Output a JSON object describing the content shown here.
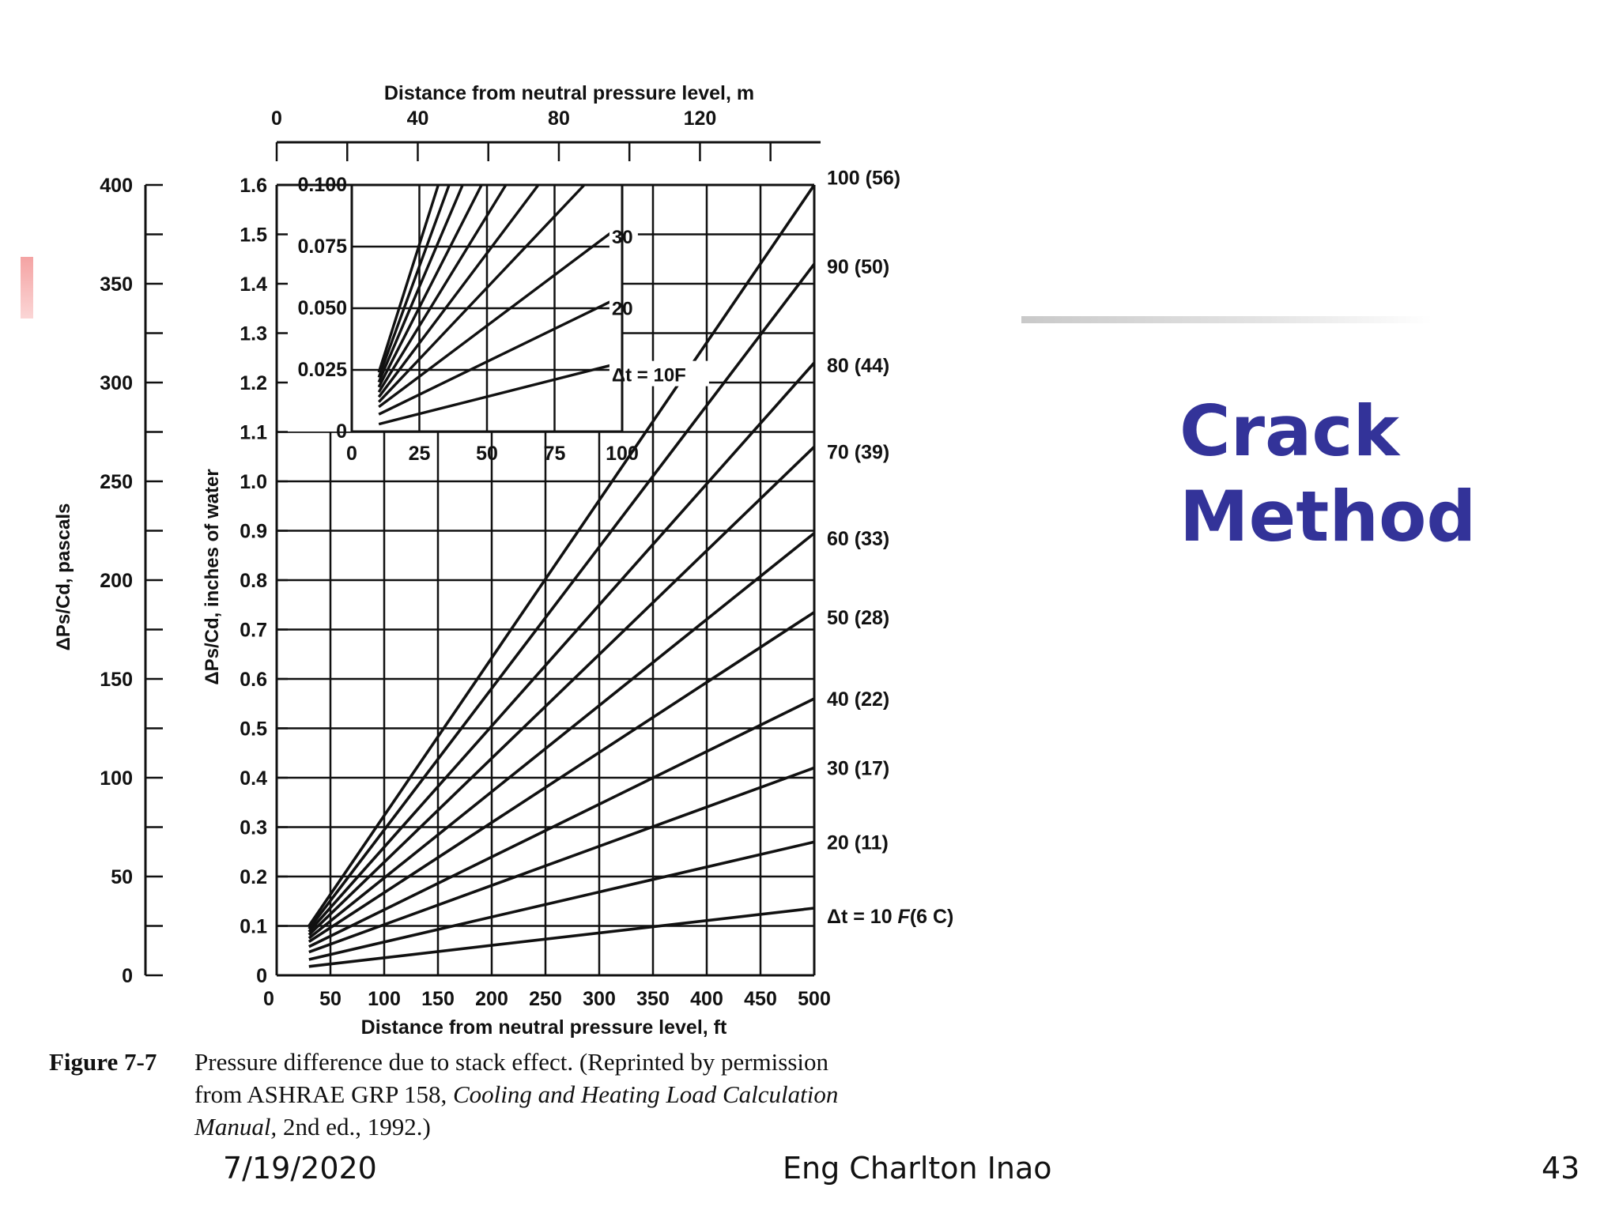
{
  "slide": {
    "title_line1": "Crack",
    "title_line2": "Method",
    "footer_date": "7/19/2020",
    "footer_author": "Eng Charlton Inao",
    "page_number": "43",
    "title_color": "#333399"
  },
  "caption": {
    "figure_number": "Figure 7-7",
    "line1": "Pressure difference due to stack effect. (Reprinted by permission",
    "line2_plain": "from ASHRAE GRP 158, ",
    "line2_italic": "Cooling and Heating Load Calculation",
    "line3_italic": "Manual,",
    "line3_plain": " 2nd ed., 1992.)"
  },
  "chart_data": [
    {
      "type": "line",
      "title": "",
      "xlabel": "Distance from neutral pressure level, ft",
      "x2label": "Distance from neutral pressure level, m",
      "ylabel": "ΔPs/Cd, inches of water",
      "y2label": "ΔPs/Cd, pascals",
      "xlim": [
        0,
        500
      ],
      "ylim": [
        0,
        1.6
      ],
      "x_ticks": [
        "0",
        "50",
        "100",
        "150",
        "200",
        "250",
        "300",
        "350",
        "400",
        "450",
        "500"
      ],
      "x2_ticks": [
        "0",
        "40",
        "80",
        "120"
      ],
      "y_ticks": [
        "0",
        "0.1",
        "0.2",
        "0.3",
        "0.4",
        "0.5",
        "0.6",
        "0.7",
        "0.8",
        "0.9",
        "1.0",
        "1.1",
        "1.2",
        "1.3",
        "1.4",
        "1.5",
        "1.6"
      ],
      "y2_ticks": [
        "0",
        "50",
        "100",
        "150",
        "200",
        "250",
        "300",
        "350",
        "400"
      ],
      "grid": true,
      "series": [
        {
          "name": "Δt = 10 F(6 C)",
          "x": [
            30,
            500
          ],
          "y": [
            0.018,
            0.136
          ]
        },
        {
          "name": "20 (11)",
          "x": [
            30,
            500
          ],
          "y": [
            0.032,
            0.27
          ]
        },
        {
          "name": "30 (17)",
          "x": [
            30,
            500
          ],
          "y": [
            0.047,
            0.42
          ]
        },
        {
          "name": "40 (22)",
          "x": [
            30,
            500
          ],
          "y": [
            0.058,
            0.56
          ]
        },
        {
          "name": "50 (28)",
          "x": [
            30,
            500
          ],
          "y": [
            0.068,
            0.735
          ]
        },
        {
          "name": "60 (33)",
          "x": [
            30,
            500
          ],
          "y": [
            0.075,
            0.895
          ]
        },
        {
          "name": "70 (39)",
          "x": [
            30,
            500
          ],
          "y": [
            0.082,
            1.07
          ]
        },
        {
          "name": "80 (44)",
          "x": [
            30,
            500
          ],
          "y": [
            0.088,
            1.24
          ]
        },
        {
          "name": "90 (50)",
          "x": [
            30,
            500
          ],
          "y": [
            0.094,
            1.44
          ]
        },
        {
          "name": "100 (56)",
          "x": [
            30,
            500
          ],
          "y": [
            0.1,
            1.6
          ]
        }
      ],
      "right_labels": [
        {
          "text": "Δt = 10 ",
          "italic": "F",
          "suffix": "(6 C)",
          "y": 0.12
        },
        {
          "text": "20  (11)",
          "y": 0.27
        },
        {
          "text": "30  (17)",
          "y": 0.42
        },
        {
          "text": "40   (22)",
          "y": 0.56
        },
        {
          "text": "50   (28)",
          "y": 0.725
        },
        {
          "text": "60   (33)",
          "y": 0.885
        },
        {
          "text": "70  (39)",
          "y": 1.06
        },
        {
          "text": "80   (44)",
          "y": 1.235
        },
        {
          "text": "90   (50)",
          "y": 1.435
        },
        {
          "text": "100 (56)",
          "y": 1.615
        }
      ]
    },
    {
      "type": "line",
      "title": "",
      "inset": true,
      "xlim": [
        0,
        100
      ],
      "ylim": [
        0,
        0.1
      ],
      "x_ticks": [
        "0",
        "25",
        "50",
        "75",
        "100"
      ],
      "y_ticks": [
        "0",
        "0.025",
        "0.050",
        "0.075",
        "0.100"
      ],
      "grid": true,
      "series": [
        {
          "name": "Δt = 10F",
          "x": [
            10,
            100
          ],
          "y": [
            0.003,
            0.028
          ]
        },
        {
          "name": "20",
          "x": [
            10,
            100
          ],
          "y": [
            0.007,
            0.055
          ]
        },
        {
          "name": "30",
          "x": [
            10,
            100
          ],
          "y": [
            0.01,
            0.084
          ]
        },
        {
          "name": "40",
          "x": [
            10,
            86
          ],
          "y": [
            0.012,
            0.1
          ]
        },
        {
          "name": "50",
          "x": [
            10,
            69
          ],
          "y": [
            0.014,
            0.1
          ]
        },
        {
          "name": "60",
          "x": [
            10,
            57
          ],
          "y": [
            0.016,
            0.1
          ]
        },
        {
          "name": "70",
          "x": [
            10,
            48
          ],
          "y": [
            0.018,
            0.1
          ]
        },
        {
          "name": "80",
          "x": [
            10,
            41
          ],
          "y": [
            0.02,
            0.1
          ]
        },
        {
          "name": "90",
          "x": [
            10,
            36
          ],
          "y": [
            0.022,
            0.1
          ]
        },
        {
          "name": "100",
          "x": [
            10,
            32
          ],
          "y": [
            0.024,
            0.1
          ]
        }
      ],
      "line_labels": [
        {
          "text": "30",
          "x": 95,
          "y": 0.084
        },
        {
          "text": "20",
          "x": 95,
          "y": 0.055
        },
        {
          "text": "Δt = 10F",
          "x": 95,
          "y": 0.028
        }
      ]
    }
  ]
}
